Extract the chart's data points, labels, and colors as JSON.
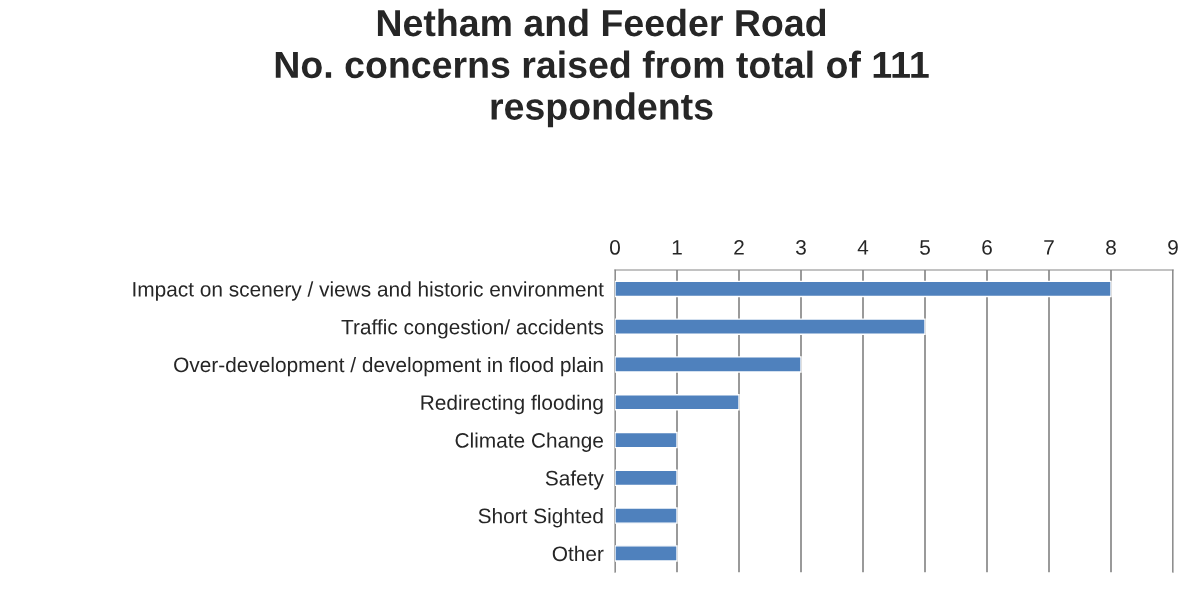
{
  "chart_data": {
    "type": "bar",
    "orientation": "horizontal",
    "title": "Netham and Feeder Road\nNo. concerns raised from total of 111\nrespondents",
    "categories": [
      "Impact on scenery / views and historic environment",
      "Traffic congestion/ accidents",
      "Over-development / development in flood plain",
      "Redirecting flooding",
      "Climate Change",
      "Safety",
      "Short Sighted",
      "Other"
    ],
    "values": [
      8,
      5,
      3,
      2,
      1,
      1,
      1,
      1
    ],
    "color": "#4f81bd",
    "xlim": [
      0,
      9
    ],
    "xticks": [
      0,
      1,
      2,
      3,
      4,
      5,
      6,
      7,
      8,
      9
    ],
    "grid": "x",
    "legend": false
  }
}
